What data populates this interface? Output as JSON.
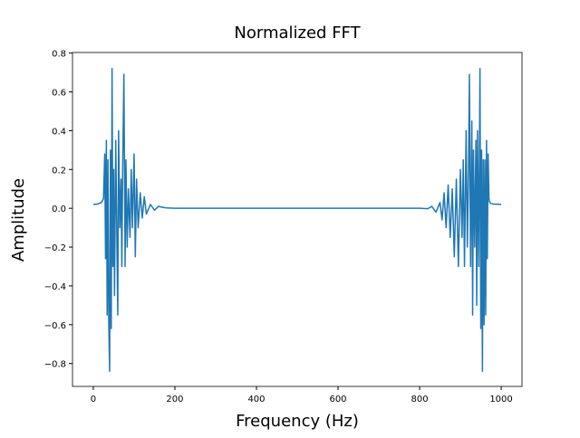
{
  "chart_data": {
    "type": "line",
    "title": "Normalized FFT",
    "x_label": "Frequency (Hz)",
    "y_label": "Amplitude",
    "color": "#1f77b4",
    "x": [
      0,
      10,
      20,
      25,
      28,
      30,
      32,
      34,
      36,
      38,
      40,
      42,
      44,
      46,
      48,
      50,
      52,
      55,
      58,
      60,
      62,
      65,
      68,
      70,
      72,
      75,
      78,
      80,
      83,
      86,
      90,
      93,
      96,
      100,
      103,
      106,
      110,
      115,
      120,
      125,
      130,
      140,
      150,
      160,
      170,
      180,
      200,
      500,
      800,
      820,
      830,
      840,
      850,
      855,
      860,
      865,
      870,
      875,
      880,
      885,
      890,
      895,
      900,
      904,
      907,
      910,
      914,
      917,
      920,
      922,
      925,
      928,
      930,
      932,
      935,
      938,
      940,
      942,
      945,
      948,
      950,
      952,
      954,
      956,
      958,
      960,
      962,
      964,
      966,
      968,
      970,
      972,
      975,
      980,
      990,
      1000
    ],
    "values": [
      0.02,
      0.022,
      0.03,
      0.05,
      0.28,
      -0.26,
      0.35,
      -0.55,
      0.25,
      -0.6,
      -0.84,
      0.3,
      -0.62,
      0.72,
      -0.3,
      0.2,
      -0.45,
      0.35,
      -0.2,
      -0.55,
      0.4,
      -0.1,
      0.15,
      -0.3,
      0.2,
      0.69,
      -0.3,
      0.25,
      -0.2,
      0.1,
      -0.15,
      0.2,
      -0.1,
      0.28,
      -0.25,
      0.15,
      -0.1,
      0.08,
      -0.05,
      0.06,
      -0.03,
      0.02,
      -0.01,
      0.01,
      0.005,
      0.002,
      0,
      0,
      0,
      -0.002,
      0.01,
      -0.02,
      0.03,
      -0.06,
      0.08,
      -0.1,
      0.12,
      -0.15,
      0.1,
      -0.25,
      0.15,
      -0.3,
      0.2,
      -0.15,
      0.25,
      -0.3,
      0.4,
      -0.2,
      0.2,
      0.69,
      -0.3,
      0.45,
      -0.55,
      0.3,
      -0.2,
      0.35,
      -0.5,
      0.4,
      -0.3,
      0.72,
      -0.62,
      0.3,
      -0.84,
      0.25,
      -0.6,
      0.25,
      -0.55,
      0.35,
      -0.26,
      0.28,
      0.05,
      0.03,
      0.025,
      0.022,
      0.021,
      0.02
    ],
    "xlim": [
      -51,
      1051
    ],
    "ylim": [
      -0.918,
      0.803
    ],
    "xticks": [
      0,
      200,
      400,
      600,
      800,
      1000
    ],
    "yticks": [
      {
        "value": -0.8,
        "label": "−0.8"
      },
      {
        "value": -0.6,
        "label": "−0.6"
      },
      {
        "value": -0.4,
        "label": "−0.4"
      },
      {
        "value": -0.2,
        "label": "−0.2"
      },
      {
        "value": 0,
        "label": "0.0"
      },
      {
        "value": 0.2,
        "label": "0.2"
      },
      {
        "value": 0.4,
        "label": "0.4"
      },
      {
        "value": 0.6,
        "label": "0.6"
      },
      {
        "value": 0.8,
        "label": "0.8"
      }
    ]
  }
}
